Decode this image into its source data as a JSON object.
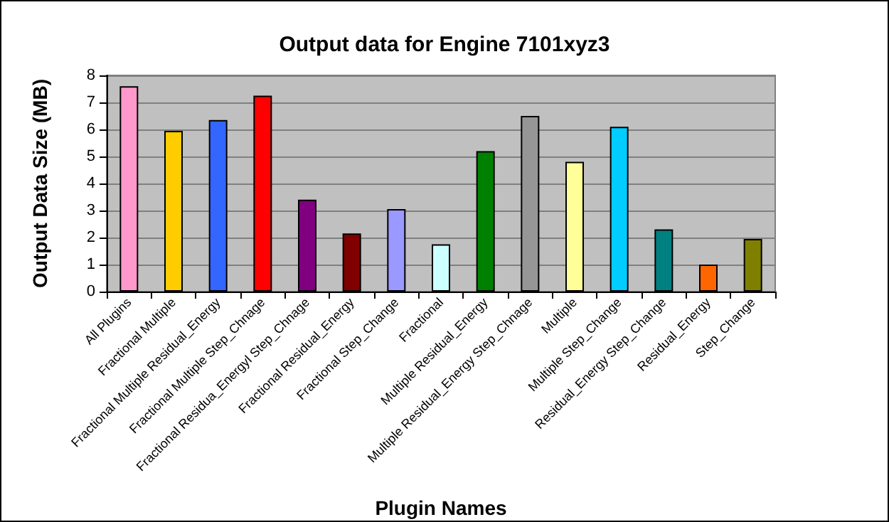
{
  "chart_data": {
    "type": "bar",
    "title": "Output data for Engine 7101xyz3",
    "xlabel": "Plugin Names",
    "ylabel": "Output Data Size (MB)",
    "categories": [
      "All Plugins",
      "Fractional Multiple",
      "Fractional Multiple Residual_Energy",
      "Fractional Multiple Step_Chnage",
      "Fractional Residua_Energyl Step_Chnage",
      "Fractional Residual_Energy",
      "Fractional Step_Change",
      "Fractional",
      "Multiple Residual_Energy",
      "Multiple Residual_Energy Step_Chnage",
      "Multiple",
      "Multiple Step_Change",
      "Residual_Energy Step_Change",
      "Residual_Energy",
      "Step_Change"
    ],
    "values": [
      7.6,
      5.95,
      6.35,
      7.25,
      3.4,
      2.15,
      3.05,
      1.75,
      5.2,
      6.5,
      4.8,
      6.1,
      2.3,
      1.0,
      1.95
    ],
    "colors": [
      "#ff99cc",
      "#ffcc00",
      "#3366ff",
      "#ff0000",
      "#800080",
      "#800000",
      "#9999ff",
      "#ccffff",
      "#008000",
      "#969696",
      "#ffff99",
      "#00ccff",
      "#008080",
      "#ff6600",
      "#808000"
    ],
    "ylim": [
      0,
      8
    ],
    "yticks": [
      0,
      1,
      2,
      3,
      4,
      5,
      6,
      7,
      8
    ],
    "grid": "y"
  }
}
